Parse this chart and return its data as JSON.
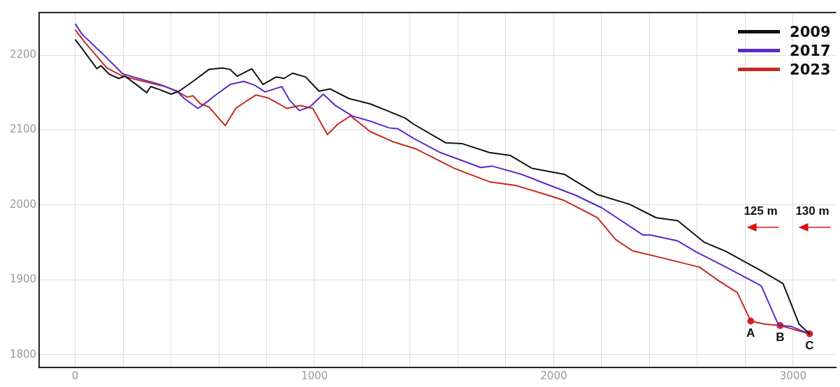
{
  "chart_data": {
    "type": "line",
    "xlim": [
      -150,
      3180
    ],
    "ylim": [
      1783,
      2257
    ],
    "xticks": [
      0,
      {
        "value": 200,
        "label": null
      },
      {
        "value": 400,
        "label": null
      },
      {
        "value": 600,
        "label": null
      },
      {
        "value": 800,
        "label": null
      },
      1000,
      {
        "value": 1200,
        "label": null
      },
      {
        "value": 1400,
        "label": null
      },
      {
        "value": 1600,
        "label": null
      },
      {
        "value": 1800,
        "label": null
      },
      2000,
      {
        "value": 2200,
        "label": null
      },
      {
        "value": 2400,
        "label": null
      },
      {
        "value": 2600,
        "label": null
      },
      {
        "value": 2800,
        "label": null
      },
      3000
    ],
    "yticks": [
      1800,
      1900,
      2000,
      2100,
      2200
    ],
    "grid": true,
    "legend": "top right",
    "marker": "none",
    "line_style": "solid",
    "series": [
      {
        "name": "2009",
        "color": "#111111",
        "x": [
          0,
          29,
          91,
          108,
          141,
          182,
          208,
          255,
          299,
          316,
          354,
          401,
          434,
          492,
          559,
          615,
          648,
          677,
          738,
          785,
          840,
          873,
          908,
          963,
          1019,
          1066,
          1145,
          1233,
          1303,
          1379,
          1414,
          1549,
          1616,
          1731,
          1819,
          1909,
          2044,
          2182,
          2316,
          2428,
          2518,
          2630,
          2720,
          2867,
          2958,
          3025,
          3069
        ],
        "values": [
          2221,
          2209,
          2182,
          2186,
          2175,
          2169,
          2172,
          2161,
          2150,
          2158,
          2154,
          2148,
          2152,
          2165,
          2181,
          2183,
          2181,
          2172,
          2182,
          2161,
          2171,
          2169,
          2176,
          2171,
          2152,
          2155,
          2142,
          2135,
          2126,
          2116,
          2108,
          2083,
          2082,
          2070,
          2066,
          2049,
          2041,
          2014,
          2001,
          1983,
          1979,
          1950,
          1938,
          1912,
          1895,
          1841,
          1828
        ]
      },
      {
        "name": "2017",
        "color": "#5a28c8",
        "x": [
          0,
          29,
          108,
          199,
          287,
          354,
          425,
          457,
          513,
          548,
          592,
          648,
          705,
          750,
          794,
          823,
          864,
          896,
          937,
          981,
          1037,
          1087,
          1157,
          1233,
          1312,
          1347,
          1414,
          1526,
          1695,
          1742,
          1865,
          1977,
          2091,
          2202,
          2372,
          2404,
          2518,
          2597,
          2720,
          2867,
          2940,
          2990,
          3069
        ],
        "values": [
          2242,
          2228,
          2204,
          2175,
          2167,
          2161,
          2152,
          2142,
          2129,
          2137,
          2148,
          2161,
          2165,
          2160,
          2151,
          2154,
          2158,
          2140,
          2126,
          2131,
          2148,
          2133,
          2119,
          2112,
          2103,
          2102,
          2089,
          2070,
          2050,
          2052,
          2041,
          2027,
          2013,
          1996,
          1960,
          1960,
          1952,
          1937,
          1917,
          1892,
          1839,
          1838,
          1828
        ]
      },
      {
        "name": "2023",
        "color": "#c8281e",
        "x": [
          0,
          41,
          132,
          199,
          287,
          378,
          425,
          469,
          492,
          524,
          559,
          627,
          671,
          717,
          756,
          806,
          852,
          884,
          941,
          993,
          1054,
          1098,
          1151,
          1233,
          1324,
          1423,
          1584,
          1731,
          1842,
          1977,
          2044,
          2182,
          2258,
          2328,
          2483,
          2609,
          2688,
          2767,
          2823,
          2879,
          2946,
          3069
        ],
        "values": [
          2234,
          2217,
          2183,
          2172,
          2165,
          2158,
          2152,
          2144,
          2146,
          2135,
          2131,
          2106,
          2129,
          2139,
          2147,
          2143,
          2135,
          2129,
          2133,
          2129,
          2094,
          2108,
          2119,
          2098,
          2085,
          2075,
          2049,
          2031,
          2026,
          2013,
          2006,
          1983,
          1954,
          1939,
          1927,
          1917,
          1899,
          1883,
          1845,
          1841,
          1839,
          1828
        ]
      },
      {
        "type": "scatter",
        "marker": "circle",
        "color": "#d42020",
        "x": [
          2823,
          2946,
          3069
        ],
        "values": [
          1845,
          1839,
          1828
        ]
      }
    ],
    "annotations": [
      {
        "text": "A",
        "x": 2823,
        "y": 1845
      },
      {
        "text": "B",
        "x": 2946,
        "y": 1839
      },
      {
        "text": "C",
        "x": 3069,
        "y": 1828
      },
      "125 m",
      "130 m"
    ]
  }
}
